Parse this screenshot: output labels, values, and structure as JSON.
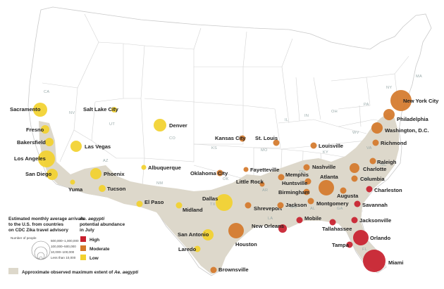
{
  "colors": {
    "high": "#c8202e",
    "moderate": "#d4782a",
    "low": "#f2d12e",
    "range": "#ddd8cb",
    "border": "#cfcfcf",
    "water": "#ffffff"
  },
  "states": [
    "CA",
    "NV",
    "UT",
    "AZ",
    "CO",
    "NM",
    "TX",
    "KS",
    "OK",
    "MO",
    "AR",
    "LA",
    "MS",
    "AL",
    "GA",
    "FL",
    "SC",
    "NC",
    "TN",
    "KY",
    "VA",
    "PA",
    "NY",
    "WV",
    "OH",
    "IN",
    "IL",
    "MA"
  ],
  "cities": [
    {
      "name": "Sacramento",
      "level": "low",
      "size": "medium"
    },
    {
      "name": "Fresno",
      "level": "low",
      "size": "small"
    },
    {
      "name": "Bakersfield",
      "level": "low",
      "size": "small"
    },
    {
      "name": "Los Angeles",
      "level": "low",
      "size": "large"
    },
    {
      "name": "San Diego",
      "level": "low",
      "size": "medium"
    },
    {
      "name": "Yuma",
      "level": "low",
      "size": "tiny"
    },
    {
      "name": "Salt Lake City",
      "level": "low",
      "size": "tiny"
    },
    {
      "name": "Las Vegas",
      "level": "low",
      "size": "medium"
    },
    {
      "name": "Phoenix",
      "level": "low",
      "size": "medium"
    },
    {
      "name": "Tucson",
      "level": "low",
      "size": "small"
    },
    {
      "name": "Denver",
      "level": "low",
      "size": "medium"
    },
    {
      "name": "Albuquerque",
      "level": "low",
      "size": "tiny"
    },
    {
      "name": "El Paso",
      "level": "low",
      "size": "small"
    },
    {
      "name": "Midland",
      "level": "low",
      "size": "small"
    },
    {
      "name": "Dallas",
      "level": "low",
      "size": "large"
    },
    {
      "name": "San Antonio",
      "level": "low",
      "size": "medium"
    },
    {
      "name": "Laredo",
      "level": "low",
      "size": "small"
    },
    {
      "name": "Brownsville",
      "level": "moderate",
      "size": "small"
    },
    {
      "name": "Houston",
      "level": "moderate",
      "size": "large"
    },
    {
      "name": "Kansas City",
      "level": "moderate",
      "size": "small"
    },
    {
      "name": "St. Louis",
      "level": "moderate",
      "size": "small"
    },
    {
      "name": "Oklahoma City",
      "level": "moderate",
      "size": "small"
    },
    {
      "name": "Fayetteville",
      "level": "moderate",
      "size": "tiny"
    },
    {
      "name": "Little Rock",
      "level": "moderate",
      "size": "tiny"
    },
    {
      "name": "Shreveport",
      "level": "moderate",
      "size": "small"
    },
    {
      "name": "Memphis",
      "level": "moderate",
      "size": "small"
    },
    {
      "name": "Jackson",
      "level": "moderate",
      "size": "small"
    },
    {
      "name": "Louisville",
      "level": "moderate",
      "size": "small"
    },
    {
      "name": "Nashville",
      "level": "moderate",
      "size": "small"
    },
    {
      "name": "Huntsville",
      "level": "moderate",
      "size": "small"
    },
    {
      "name": "Birmingham",
      "level": "moderate",
      "size": "small"
    },
    {
      "name": "Atlanta",
      "level": "moderate",
      "size": "large"
    },
    {
      "name": "Montgomery",
      "level": "moderate",
      "size": "small"
    },
    {
      "name": "Augusta",
      "level": "moderate",
      "size": "small"
    },
    {
      "name": "Columbia",
      "level": "moderate",
      "size": "small"
    },
    {
      "name": "Charlotte",
      "level": "moderate",
      "size": "medium"
    },
    {
      "name": "Raleigh",
      "level": "moderate",
      "size": "small"
    },
    {
      "name": "Richmond",
      "level": "moderate",
      "size": "small"
    },
    {
      "name": "Washington, D.C.",
      "level": "moderate",
      "size": "medium"
    },
    {
      "name": "Philadelphia",
      "level": "moderate",
      "size": "medium"
    },
    {
      "name": "New York City",
      "level": "moderate",
      "size": "large"
    },
    {
      "name": "New Orleans",
      "level": "high",
      "size": "small"
    },
    {
      "name": "Mobile",
      "level": "high",
      "size": "small"
    },
    {
      "name": "Tallahassee",
      "level": "high",
      "size": "small"
    },
    {
      "name": "Jacksonville",
      "level": "high",
      "size": "small"
    },
    {
      "name": "Savannah",
      "level": "high",
      "size": "small"
    },
    {
      "name": "Charleston",
      "level": "high",
      "size": "small"
    },
    {
      "name": "Orlando",
      "level": "high",
      "size": "large"
    },
    {
      "name": "Tampa",
      "level": "high",
      "size": "small"
    },
    {
      "name": "Miami",
      "level": "high",
      "size": "xlarge"
    }
  ],
  "legend": {
    "arrivals_title_1": "Estimated monthly average arrivals",
    "arrivals_title_2": "to the U.S. from countries",
    "arrivals_title_3": "on CDC Zika travel advisory",
    "number_of_people": "Number of people",
    "size_1": "500,000–1,000,000",
    "size_2": "100,000–500,000",
    "size_3": "10,000–100,000",
    "size_4": "Less than 10,000",
    "abundance_title_1": "Ae. aegypti",
    "abundance_title_2": "potential abundance",
    "abundance_title_3": "in July",
    "high": "High",
    "moderate": "Moderate",
    "low": "Low",
    "range_prefix": "Approximate observed maximum extent of ",
    "range_species": "Ae. aegypti"
  }
}
